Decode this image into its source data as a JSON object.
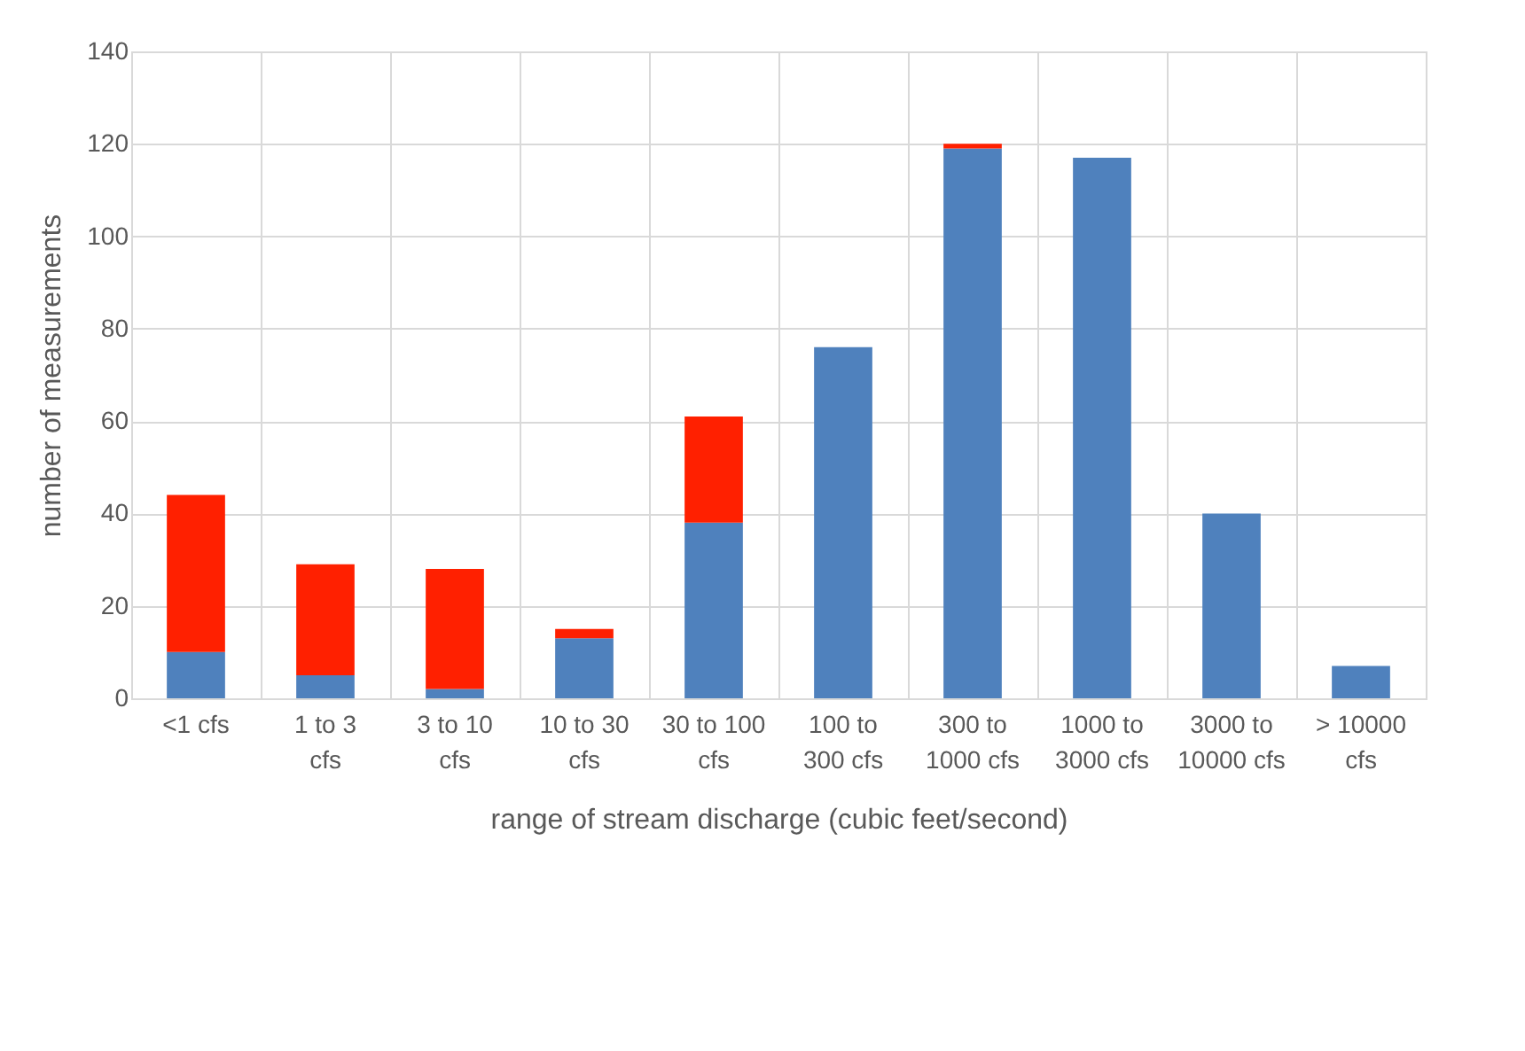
{
  "chart_data": {
    "type": "bar",
    "stacked": true,
    "xlabel": "range of stream discharge (cubic feet/second)",
    "ylabel": "number of measurements",
    "categories": [
      "<1 cfs",
      "1 to 3 cfs",
      "3 to 10 cfs",
      "10 to 30 cfs",
      "30 to 100 cfs",
      "100 to 300 cfs",
      "300 to 1000 cfs",
      "1000 to 3000 cfs",
      "3000 to 10000 cfs",
      "> 10000 cfs"
    ],
    "series": [
      {
        "color": "#4f81bd",
        "values": [
          10,
          5,
          2,
          13,
          38,
          76,
          119,
          117,
          40,
          7
        ]
      },
      {
        "color": "#ff2000",
        "values": [
          34,
          24,
          26,
          2,
          23,
          0,
          1,
          0,
          0,
          0
        ]
      }
    ],
    "ylim": [
      0,
      140
    ],
    "yticks": [
      0,
      20,
      40,
      60,
      80,
      100,
      120,
      140
    ],
    "grid": true
  }
}
